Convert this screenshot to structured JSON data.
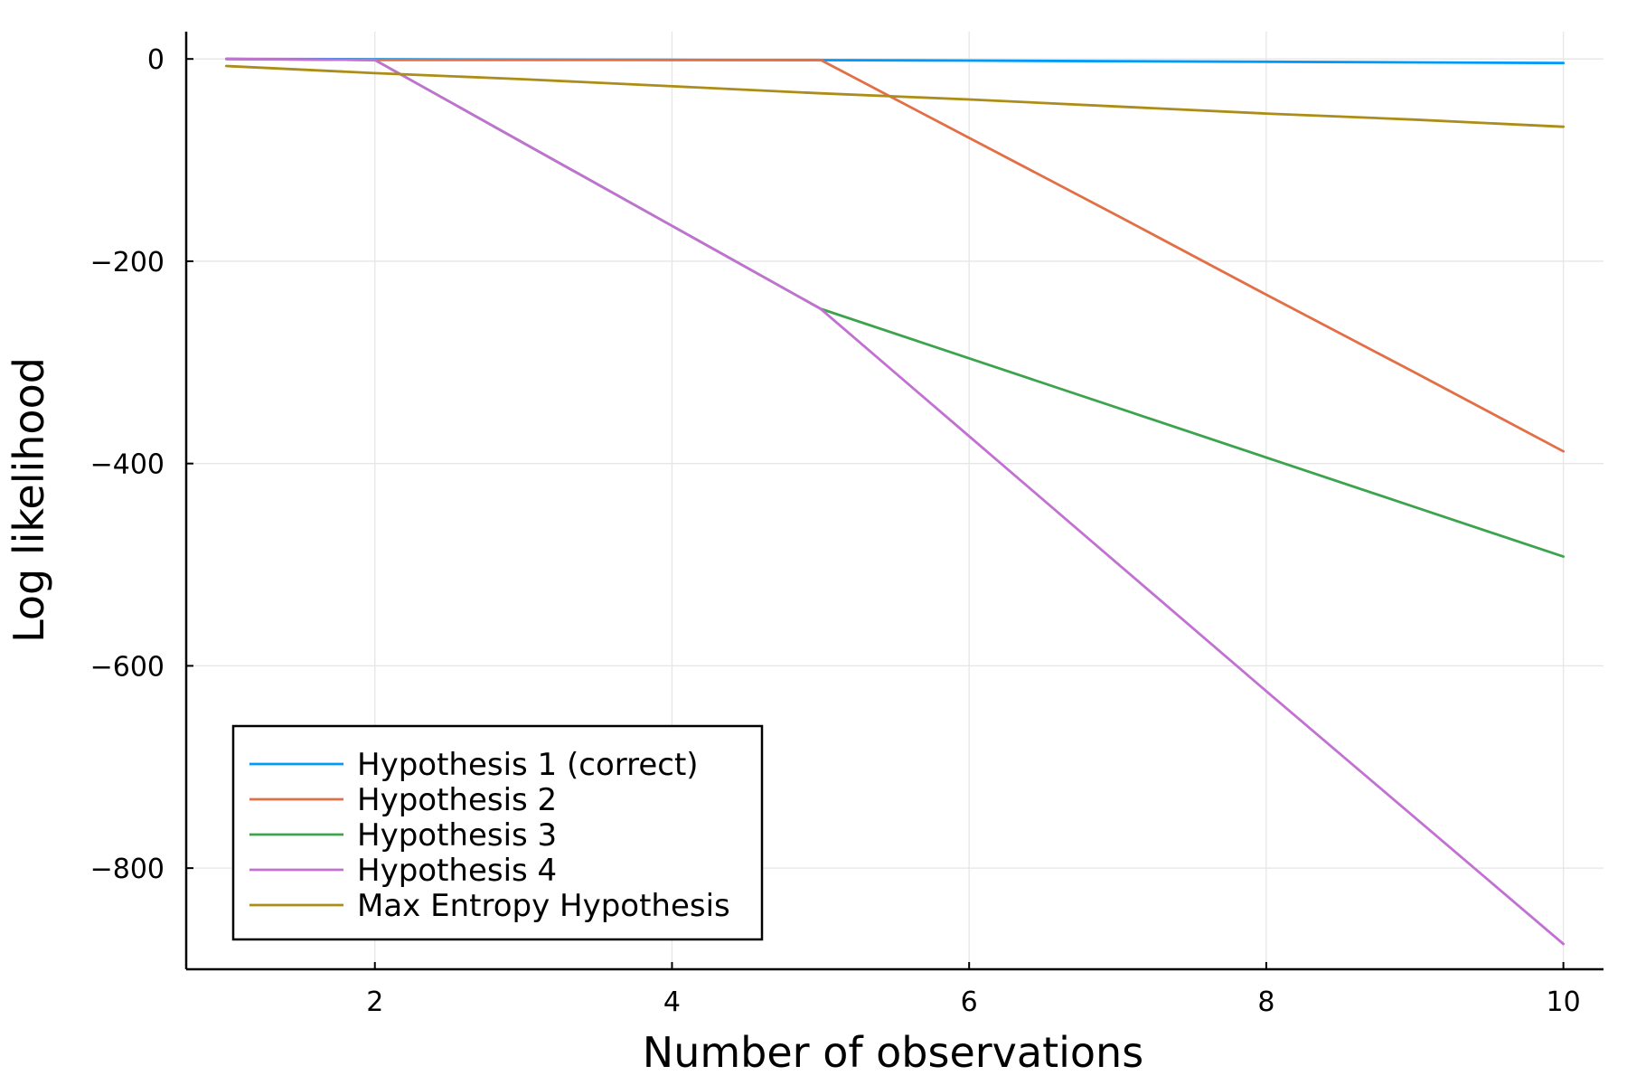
{
  "chart_data": {
    "type": "line",
    "title": "",
    "xlabel": "Number of observations",
    "ylabel": "Log likelihood",
    "xlim": [
      0.73,
      10.27
    ],
    "ylim": [
      -900,
      27
    ],
    "x_ticks": [
      2,
      4,
      6,
      8,
      10
    ],
    "x_tick_labels": [
      "2",
      "4",
      "6",
      "8",
      "10"
    ],
    "y_ticks": [
      0,
      -200,
      -400,
      -600,
      -800
    ],
    "y_tick_labels": [
      "0",
      "−200",
      "−400",
      "−600",
      "−800"
    ],
    "grid": true,
    "legend_position": "bottom-left",
    "x": [
      1,
      2,
      3,
      4,
      5,
      6,
      7,
      8,
      9,
      10
    ],
    "series": [
      {
        "name": "Hypothesis 1 (correct)",
        "color": "#009af9",
        "values": [
          0,
          -0.3,
          -0.6,
          -0.9,
          -1.2,
          -1.6,
          -2.2,
          -2.8,
          -3.4,
          -4
        ]
      },
      {
        "name": "Hypothesis 2",
        "color": "#e26f46",
        "values": [
          0,
          -1,
          -1,
          -1,
          -1,
          -78,
          -155,
          -233,
          -310,
          -388
        ]
      },
      {
        "name": "Hypothesis 3",
        "color": "#3da44d",
        "values": [
          0,
          -1,
          -83,
          -165,
          -247,
          -296,
          -345,
          -394,
          -443,
          -492
        ]
      },
      {
        "name": "Hypothesis 4",
        "color": "#c271d2",
        "values": [
          0,
          -1,
          -83,
          -165,
          -247,
          -373,
          -499,
          -625,
          -750,
          -875
        ]
      },
      {
        "name": "Max Entropy Hypothesis",
        "color": "#ac8d18",
        "values": [
          -7,
          -14,
          -20,
          -27,
          -34,
          -40,
          -47,
          -54,
          -60,
          -67
        ]
      }
    ]
  }
}
